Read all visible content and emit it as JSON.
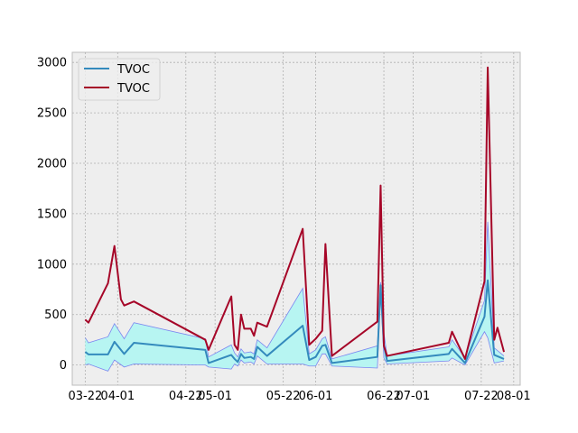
{
  "chart_data": {
    "type": "line",
    "title": "",
    "xlabel": "",
    "ylabel": "",
    "x_axis": "date",
    "xlim": [
      "2023-03-18",
      "2023-08-03"
    ],
    "ylim": [
      -200,
      3100
    ],
    "y_ticks": [
      0,
      500,
      1000,
      1500,
      2000,
      2500,
      3000
    ],
    "x_ticks": [
      {
        "date": "2023-03-22",
        "label": "03-22"
      },
      {
        "date": "2023-04-01",
        "label": "04-01"
      },
      {
        "date": "2023-04-22",
        "label": "04-22"
      },
      {
        "date": "2023-05-01",
        "label": "05-01"
      },
      {
        "date": "2023-05-22",
        "label": "05-22"
      },
      {
        "date": "2023-06-01",
        "label": "06-01"
      },
      {
        "date": "2023-06-22",
        "label": "06-22"
      },
      {
        "date": "2023-07-01",
        "label": "07-01"
      },
      {
        "date": "2023-07-22",
        "label": "07-22"
      },
      {
        "date": "2023-08-01",
        "label": "08-01"
      }
    ],
    "grid": true,
    "legend_position": "top-left",
    "colors": {
      "mean_line": "#348abd",
      "max_line": "#a60628",
      "band_fill": "#b7f5f2",
      "band_edge": "#7b86f0",
      "plot_bg": "#eeeeee",
      "grid": "#b0b0b0"
    },
    "series": [
      {
        "name": "TVOC",
        "role": "mean",
        "points": [
          {
            "x": "2023-03-22",
            "y": 130
          },
          {
            "x": "2023-03-23",
            "y": 105
          },
          {
            "x": "2023-03-29",
            "y": 105
          },
          {
            "x": "2023-03-31",
            "y": 230
          },
          {
            "x": "2023-04-03",
            "y": 110
          },
          {
            "x": "2023-04-06",
            "y": 220
          },
          {
            "x": "2023-04-28",
            "y": 150
          },
          {
            "x": "2023-04-29",
            "y": 20
          },
          {
            "x": "2023-05-06",
            "y": 100
          },
          {
            "x": "2023-05-07",
            "y": 60
          },
          {
            "x": "2023-05-08",
            "y": 30
          },
          {
            "x": "2023-05-09",
            "y": 110
          },
          {
            "x": "2023-05-10",
            "y": 70
          },
          {
            "x": "2023-05-12",
            "y": 80
          },
          {
            "x": "2023-05-13",
            "y": 60
          },
          {
            "x": "2023-05-14",
            "y": 180
          },
          {
            "x": "2023-05-17",
            "y": 90
          },
          {
            "x": "2023-05-28",
            "y": 390
          },
          {
            "x": "2023-05-30",
            "y": 50
          },
          {
            "x": "2023-06-01",
            "y": 80
          },
          {
            "x": "2023-06-03",
            "y": 190
          },
          {
            "x": "2023-06-04",
            "y": 200
          },
          {
            "x": "2023-06-06",
            "y": 20
          },
          {
            "x": "2023-06-20",
            "y": 80
          },
          {
            "x": "2023-06-21",
            "y": 790
          },
          {
            "x": "2023-06-22",
            "y": 200
          },
          {
            "x": "2023-06-23",
            "y": 40
          },
          {
            "x": "2023-07-12",
            "y": 110
          },
          {
            "x": "2023-07-13",
            "y": 160
          },
          {
            "x": "2023-07-17",
            "y": 20
          },
          {
            "x": "2023-07-23",
            "y": 480
          },
          {
            "x": "2023-07-24",
            "y": 840
          },
          {
            "x": "2023-07-26",
            "y": 100
          },
          {
            "x": "2023-07-29",
            "y": 60
          }
        ]
      },
      {
        "name": "TVOC",
        "role": "max",
        "points": [
          {
            "x": "2023-03-22",
            "y": 450
          },
          {
            "x": "2023-03-23",
            "y": 420
          },
          {
            "x": "2023-03-29",
            "y": 810
          },
          {
            "x": "2023-03-31",
            "y": 1180
          },
          {
            "x": "2023-04-02",
            "y": 650
          },
          {
            "x": "2023-04-03",
            "y": 590
          },
          {
            "x": "2023-04-06",
            "y": 630
          },
          {
            "x": "2023-04-28",
            "y": 250
          },
          {
            "x": "2023-04-29",
            "y": 150
          },
          {
            "x": "2023-05-06",
            "y": 680
          },
          {
            "x": "2023-05-07",
            "y": 200
          },
          {
            "x": "2023-05-08",
            "y": 150
          },
          {
            "x": "2023-05-09",
            "y": 500
          },
          {
            "x": "2023-05-10",
            "y": 360
          },
          {
            "x": "2023-05-12",
            "y": 360
          },
          {
            "x": "2023-05-13",
            "y": 290
          },
          {
            "x": "2023-05-14",
            "y": 420
          },
          {
            "x": "2023-05-17",
            "y": 380
          },
          {
            "x": "2023-05-28",
            "y": 1350
          },
          {
            "x": "2023-05-30",
            "y": 200
          },
          {
            "x": "2023-06-01",
            "y": 260
          },
          {
            "x": "2023-06-03",
            "y": 340
          },
          {
            "x": "2023-06-04",
            "y": 1200
          },
          {
            "x": "2023-06-06",
            "y": 90
          },
          {
            "x": "2023-06-20",
            "y": 430
          },
          {
            "x": "2023-06-21",
            "y": 1780
          },
          {
            "x": "2023-06-22",
            "y": 190
          },
          {
            "x": "2023-06-23",
            "y": 90
          },
          {
            "x": "2023-07-12",
            "y": 220
          },
          {
            "x": "2023-07-13",
            "y": 330
          },
          {
            "x": "2023-07-17",
            "y": 60
          },
          {
            "x": "2023-07-23",
            "y": 830
          },
          {
            "x": "2023-07-24",
            "y": 2950
          },
          {
            "x": "2023-07-26",
            "y": 250
          },
          {
            "x": "2023-07-27",
            "y": 370
          },
          {
            "x": "2023-07-29",
            "y": 130
          }
        ]
      }
    ],
    "band": {
      "role": "min-max range around mean",
      "upper": [
        {
          "x": "2023-03-22",
          "y": 270
        },
        {
          "x": "2023-03-23",
          "y": 220
        },
        {
          "x": "2023-03-29",
          "y": 280
        },
        {
          "x": "2023-03-31",
          "y": 410
        },
        {
          "x": "2023-04-03",
          "y": 260
        },
        {
          "x": "2023-04-06",
          "y": 420
        },
        {
          "x": "2023-04-28",
          "y": 260
        },
        {
          "x": "2023-04-29",
          "y": 80
        },
        {
          "x": "2023-05-06",
          "y": 200
        },
        {
          "x": "2023-05-07",
          "y": 120
        },
        {
          "x": "2023-05-08",
          "y": 80
        },
        {
          "x": "2023-05-09",
          "y": 160
        },
        {
          "x": "2023-05-10",
          "y": 120
        },
        {
          "x": "2023-05-12",
          "y": 130
        },
        {
          "x": "2023-05-13",
          "y": 110
        },
        {
          "x": "2023-05-14",
          "y": 250
        },
        {
          "x": "2023-05-17",
          "y": 170
        },
        {
          "x": "2023-05-28",
          "y": 760
        },
        {
          "x": "2023-05-30",
          "y": 110
        },
        {
          "x": "2023-06-01",
          "y": 150
        },
        {
          "x": "2023-06-03",
          "y": 260
        },
        {
          "x": "2023-06-04",
          "y": 280
        },
        {
          "x": "2023-06-06",
          "y": 60
        },
        {
          "x": "2023-06-20",
          "y": 190
        },
        {
          "x": "2023-06-21",
          "y": 820
        },
        {
          "x": "2023-06-22",
          "y": 320
        },
        {
          "x": "2023-06-23",
          "y": 90
        },
        {
          "x": "2023-07-12",
          "y": 180
        },
        {
          "x": "2023-07-13",
          "y": 250
        },
        {
          "x": "2023-07-17",
          "y": 70
        },
        {
          "x": "2023-07-23",
          "y": 640
        },
        {
          "x": "2023-07-24",
          "y": 1420
        },
        {
          "x": "2023-07-26",
          "y": 170
        },
        {
          "x": "2023-07-29",
          "y": 90
        }
      ],
      "lower": [
        {
          "x": "2023-03-22",
          "y": 0
        },
        {
          "x": "2023-03-23",
          "y": 10
        },
        {
          "x": "2023-03-29",
          "y": -60
        },
        {
          "x": "2023-03-31",
          "y": 50
        },
        {
          "x": "2023-04-03",
          "y": -20
        },
        {
          "x": "2023-04-06",
          "y": 10
        },
        {
          "x": "2023-04-28",
          "y": 0
        },
        {
          "x": "2023-04-29",
          "y": -20
        },
        {
          "x": "2023-05-06",
          "y": -40
        },
        {
          "x": "2023-05-07",
          "y": 10
        },
        {
          "x": "2023-05-08",
          "y": -10
        },
        {
          "x": "2023-05-09",
          "y": 50
        },
        {
          "x": "2023-05-10",
          "y": 20
        },
        {
          "x": "2023-05-12",
          "y": 30
        },
        {
          "x": "2023-05-13",
          "y": 10
        },
        {
          "x": "2023-05-14",
          "y": 90
        },
        {
          "x": "2023-05-17",
          "y": 10
        },
        {
          "x": "2023-05-28",
          "y": 10
        },
        {
          "x": "2023-05-30",
          "y": -10
        },
        {
          "x": "2023-06-01",
          "y": -10
        },
        {
          "x": "2023-06-03",
          "y": 110
        },
        {
          "x": "2023-06-04",
          "y": 110
        },
        {
          "x": "2023-06-06",
          "y": -10
        },
        {
          "x": "2023-06-20",
          "y": -30
        },
        {
          "x": "2023-06-21",
          "y": 740
        },
        {
          "x": "2023-06-22",
          "y": 70
        },
        {
          "x": "2023-06-23",
          "y": 10
        },
        {
          "x": "2023-07-12",
          "y": 40
        },
        {
          "x": "2023-07-13",
          "y": 70
        },
        {
          "x": "2023-07-17",
          "y": 0
        },
        {
          "x": "2023-07-23",
          "y": 330
        },
        {
          "x": "2023-07-24",
          "y": 270
        },
        {
          "x": "2023-07-26",
          "y": 20
        },
        {
          "x": "2023-07-29",
          "y": 40
        }
      ]
    }
  }
}
